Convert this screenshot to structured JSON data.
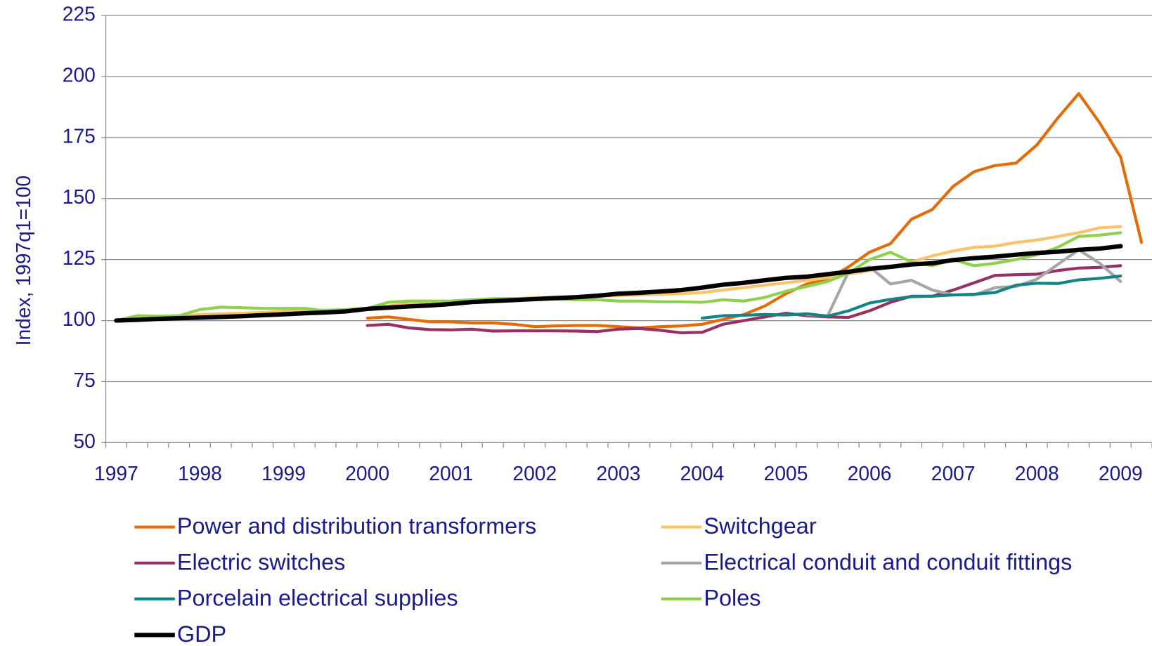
{
  "chart_data": {
    "type": "line",
    "y_label": "Index, 1997q1=100",
    "categories": [
      "1997",
      null,
      null,
      null,
      "1998",
      null,
      null,
      null,
      "1999",
      null,
      null,
      null,
      "2000",
      null,
      null,
      null,
      "2001",
      null,
      null,
      null,
      "2002",
      null,
      null,
      null,
      "2003",
      null,
      null,
      null,
      "2004",
      null,
      null,
      null,
      "2005",
      null,
      null,
      null,
      "2006",
      null,
      null,
      null,
      "2007",
      null,
      null,
      null,
      "2008",
      null,
      null,
      null,
      "2009",
      null
    ],
    "ylim": [
      50,
      225
    ],
    "yticks": [
      50,
      75,
      100,
      125,
      150,
      175,
      200,
      225
    ],
    "grid": true,
    "series": [
      {
        "name": "Power and distribution transformers",
        "color": "#e36c09",
        "values": [
          null,
          null,
          null,
          null,
          null,
          null,
          null,
          null,
          null,
          null,
          null,
          null,
          101,
          101.5,
          100.5,
          99.5,
          99.5,
          99,
          99,
          98.5,
          97.5,
          97.8,
          98,
          98,
          97.5,
          97,
          97.5,
          97.8,
          98.5,
          100.5,
          102.5,
          106,
          111,
          115,
          117,
          122,
          128,
          131.5,
          141.5,
          145.5,
          155,
          161,
          163.5,
          164.5,
          172,
          183,
          193,
          181,
          167,
          132
        ]
      },
      {
        "name": "Switchgear",
        "color": "#fac36a",
        "values": [
          100,
          101.5,
          101.8,
          102,
          102.5,
          102.8,
          103,
          103.3,
          103.8,
          104,
          104.3,
          104.5,
          105,
          106,
          107,
          107.5,
          108,
          108.5,
          108.8,
          109,
          109.3,
          109.6,
          109.8,
          110,
          110.3,
          110.5,
          110.8,
          111,
          111.5,
          112.5,
          113.5,
          114.5,
          115.5,
          116.5,
          117.5,
          119,
          120.5,
          122,
          124,
          126.5,
          128.5,
          130,
          130.5,
          132,
          133,
          134.5,
          136,
          138,
          138.5,
          null
        ]
      },
      {
        "name": "Electric switches",
        "color": "#953163",
        "values": [
          null,
          null,
          null,
          null,
          null,
          null,
          null,
          null,
          null,
          null,
          null,
          null,
          98,
          98.5,
          97,
          96.3,
          96.2,
          96.5,
          95.7,
          95.8,
          95.8,
          95.8,
          95.7,
          95.5,
          96.5,
          96.8,
          96,
          95,
          95.2,
          98.5,
          100,
          101.5,
          103,
          102,
          101.5,
          101.3,
          104,
          107.5,
          110,
          110,
          112.5,
          115.5,
          118.5,
          118.8,
          119,
          120.5,
          121.5,
          121.8,
          122.5,
          null
        ]
      },
      {
        "name": "Electrical conduit and conduit fittings",
        "color": "#a6a6a6",
        "values": [
          null,
          null,
          null,
          null,
          null,
          null,
          null,
          null,
          null,
          null,
          null,
          null,
          null,
          null,
          null,
          null,
          null,
          null,
          null,
          null,
          null,
          null,
          null,
          null,
          null,
          null,
          null,
          null,
          null,
          null,
          null,
          null,
          null,
          102.5,
          102,
          120,
          122,
          115,
          116.5,
          112.5,
          110.5,
          110.5,
          113.5,
          114,
          117,
          123,
          129,
          123.5,
          116,
          null
        ]
      },
      {
        "name": "Porcelain electrical supplies",
        "color": "#138484",
        "values": [
          null,
          null,
          null,
          null,
          null,
          null,
          null,
          null,
          null,
          null,
          null,
          null,
          null,
          null,
          null,
          null,
          null,
          null,
          null,
          null,
          null,
          null,
          null,
          null,
          null,
          null,
          null,
          null,
          101,
          102,
          102.2,
          102.5,
          102.3,
          102.8,
          101.8,
          104,
          107.2,
          108.7,
          109.8,
          110,
          110.5,
          110.8,
          111.5,
          114.5,
          115.3,
          115.2,
          116.7,
          117.3,
          118.3,
          null
        ]
      },
      {
        "name": "Poles",
        "color": "#8fd14f",
        "values": [
          100,
          102,
          101.8,
          102,
          104.5,
          105.5,
          105.3,
          105,
          105,
          105,
          104,
          104.5,
          105,
          107.5,
          108,
          108,
          108,
          108.5,
          109,
          109,
          108.8,
          108.8,
          108.5,
          108.5,
          108,
          108,
          107.7,
          107.7,
          107.5,
          108.5,
          108,
          109.5,
          112,
          114,
          116,
          119.5,
          125,
          128,
          124,
          122.5,
          125,
          122.5,
          123.5,
          125,
          127,
          130,
          134.5,
          135,
          136,
          null
        ]
      },
      {
        "name": "GDP",
        "color": "#000000",
        "values": [
          100,
          100.3,
          100.7,
          101,
          101.2,
          101.5,
          101.8,
          102.2,
          102.6,
          103,
          103.3,
          103.8,
          104.8,
          105.3,
          105.8,
          106.2,
          106.8,
          107.6,
          108,
          108.4,
          108.8,
          109.2,
          109.6,
          110.2,
          111,
          111.4,
          111.9,
          112.5,
          113.5,
          114.7,
          115.5,
          116.5,
          117.5,
          118,
          119,
          120,
          121.2,
          122,
          123,
          123.5,
          124.8,
          125.6,
          126.2,
          127,
          127.7,
          128.2,
          129,
          129.5,
          130.5,
          null
        ]
      }
    ]
  }
}
